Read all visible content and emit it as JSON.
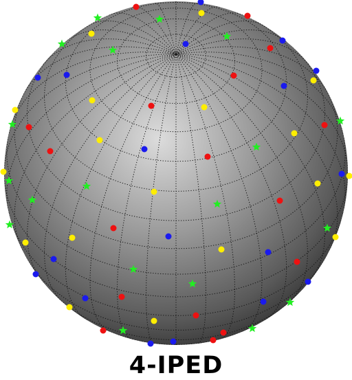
{
  "caption": "4-IPED",
  "sphere": {
    "shading": [
      "#dcdcdc",
      "#9a9a9a",
      "#5a5a5a",
      "#3a3a3a"
    ],
    "grid_color": "#111111",
    "pole": {
      "lon": 0,
      "lat": 90
    },
    "view": {
      "center_lat": 45,
      "center_lon": 0
    }
  },
  "marker_types": [
    {
      "name": "red-dot",
      "color": "#ee1111",
      "shape": "circle"
    },
    {
      "name": "blue-dot",
      "color": "#1a1aee",
      "shape": "circle"
    },
    {
      "name": "yellow-dot",
      "color": "#ffee00",
      "shape": "circle"
    },
    {
      "name": "green-star",
      "color": "#22ee22",
      "shape": "star"
    }
  ]
}
